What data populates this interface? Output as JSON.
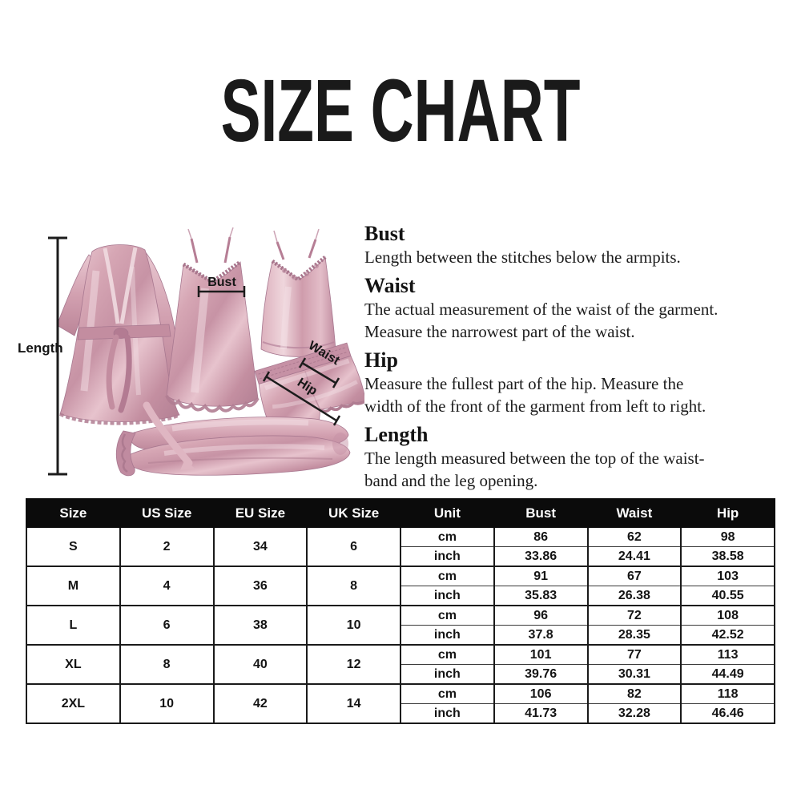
{
  "page": {
    "title": "SIZE CHART"
  },
  "diagram": {
    "labels": {
      "length": "Length",
      "bust": "Bust",
      "waist": "Waist",
      "hip": "Hip"
    },
    "colors": {
      "satin_light": "#eed2da",
      "satin_base": "#d4a2b2",
      "satin_dark": "#b27f93",
      "annotation": "#1c1c1c"
    }
  },
  "definitions": [
    {
      "term": "Bust",
      "lines": [
        "Length between the stitches below the armpits."
      ]
    },
    {
      "term": "Waist",
      "lines": [
        "The actual measurement of the waist of the garment.",
        "Measure the narrowest part of the waist."
      ]
    },
    {
      "term": "Hip",
      "lines": [
        "Measure the fullest part of the  hip. Measure the",
        "width of the front of the garment from left to right."
      ]
    },
    {
      "term": "Length",
      "lines": [
        "The length measured between the top of the waist-",
        "band and the leg opening."
      ]
    }
  ],
  "chart_data": {
    "type": "table",
    "title": "SIZE CHART",
    "columns": [
      "Size",
      "US Size",
      "EU Size",
      "UK Size",
      "Unit",
      "Bust",
      "Waist",
      "Hip"
    ],
    "unit_labels": [
      "cm",
      "inch"
    ],
    "rows": [
      {
        "size": "S",
        "us": "2",
        "eu": "34",
        "uk": "6",
        "cm": {
          "bust": "86",
          "waist": "62",
          "hip": "98"
        },
        "inch": {
          "bust": "33.86",
          "waist": "24.41",
          "hip": "38.58"
        }
      },
      {
        "size": "M",
        "us": "4",
        "eu": "36",
        "uk": "8",
        "cm": {
          "bust": "91",
          "waist": "67",
          "hip": "103"
        },
        "inch": {
          "bust": "35.83",
          "waist": "26.38",
          "hip": "40.55"
        }
      },
      {
        "size": "L",
        "us": "6",
        "eu": "38",
        "uk": "10",
        "cm": {
          "bust": "96",
          "waist": "72",
          "hip": "108"
        },
        "inch": {
          "bust": "37.8",
          "waist": "28.35",
          "hip": "42.52"
        }
      },
      {
        "size": "XL",
        "us": "8",
        "eu": "40",
        "uk": "12",
        "cm": {
          "bust": "101",
          "waist": "77",
          "hip": "113"
        },
        "inch": {
          "bust": "39.76",
          "waist": "30.31",
          "hip": "44.49"
        }
      },
      {
        "size": "2XL",
        "us": "10",
        "eu": "42",
        "uk": "14",
        "cm": {
          "bust": "106",
          "waist": "82",
          "hip": "118"
        },
        "inch": {
          "bust": "41.73",
          "waist": "32.28",
          "hip": "46.46"
        }
      }
    ]
  },
  "table_style": {
    "header_bg": "#0b0b0b",
    "header_text": "#ffffff",
    "border": "#1a1a1a"
  }
}
